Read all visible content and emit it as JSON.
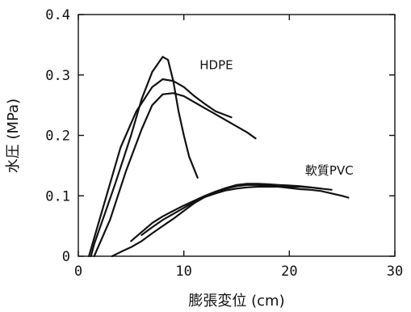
{
  "chart_data": {
    "type": "line",
    "xlabel": "膨張変位 (cm)",
    "ylabel": "水圧 (MPa)",
    "xlim": [
      0,
      30
    ],
    "ylim": [
      0,
      0.4
    ],
    "xticks": [
      0,
      10,
      20,
      30
    ],
    "xtick_labels": [
      "0",
      "10",
      "20",
      "30"
    ],
    "yticks": [
      0,
      0.1,
      0.2,
      0.3,
      0.4
    ],
    "ytick_labels": [
      "0",
      "0.1",
      "0.2",
      "0.3",
      "0.4"
    ],
    "grid": false,
    "line_color": "#111111",
    "annotations": [
      {
        "text": "HDPE",
        "x": 11.5,
        "y": 0.31
      },
      {
        "text": "軟質PVC",
        "x": 21.5,
        "y": 0.135
      }
    ],
    "series": [
      {
        "points": [
          [
            1.2,
            0
          ],
          [
            1.5,
            0.02
          ],
          [
            2.5,
            0.07
          ],
          [
            3.5,
            0.12
          ],
          [
            5,
            0.2
          ],
          [
            6,
            0.26
          ],
          [
            7,
            0.305
          ],
          [
            8,
            0.33
          ],
          [
            8.5,
            0.325
          ],
          [
            9,
            0.29
          ],
          [
            9.5,
            0.24
          ],
          [
            10,
            0.2
          ],
          [
            10.5,
            0.165
          ],
          [
            11.3,
            0.13
          ]
        ]
      },
      {
        "points": [
          [
            1,
            0
          ],
          [
            1.5,
            0.03
          ],
          [
            2.5,
            0.09
          ],
          [
            4,
            0.18
          ],
          [
            5.5,
            0.24
          ],
          [
            7,
            0.28
          ],
          [
            8,
            0.293
          ],
          [
            9,
            0.29
          ],
          [
            10,
            0.28
          ],
          [
            11,
            0.265
          ],
          [
            12,
            0.252
          ],
          [
            13,
            0.24
          ],
          [
            14.5,
            0.23
          ]
        ]
      },
      {
        "points": [
          [
            1.5,
            0
          ],
          [
            2,
            0.02
          ],
          [
            3,
            0.06
          ],
          [
            4.5,
            0.14
          ],
          [
            6,
            0.21
          ],
          [
            7,
            0.25
          ],
          [
            8,
            0.268
          ],
          [
            9,
            0.27
          ],
          [
            10,
            0.265
          ],
          [
            11,
            0.255
          ],
          [
            12,
            0.245
          ],
          [
            13,
            0.235
          ],
          [
            14,
            0.225
          ],
          [
            15,
            0.215
          ],
          [
            16,
            0.205
          ],
          [
            16.8,
            0.195
          ]
        ]
      },
      {
        "points": [
          [
            3.2,
            0
          ],
          [
            4,
            0.007
          ],
          [
            5,
            0.015
          ],
          [
            6,
            0.025
          ],
          [
            7,
            0.038
          ],
          [
            8,
            0.05
          ],
          [
            9,
            0.062
          ],
          [
            10,
            0.075
          ],
          [
            11,
            0.088
          ],
          [
            12,
            0.098
          ],
          [
            13,
            0.106
          ],
          [
            14,
            0.112
          ],
          [
            15,
            0.116
          ],
          [
            16,
            0.118
          ],
          [
            17,
            0.118
          ],
          [
            18,
            0.117
          ],
          [
            19,
            0.115
          ],
          [
            20,
            0.113
          ],
          [
            21,
            0.111
          ],
          [
            22,
            0.11
          ],
          [
            23,
            0.108
          ],
          [
            24,
            0.104
          ],
          [
            25,
            0.1
          ],
          [
            25.6,
            0.097
          ]
        ]
      },
      {
        "points": [
          [
            5,
            0.025
          ],
          [
            6,
            0.04
          ],
          [
            7,
            0.055
          ],
          [
            8,
            0.066
          ],
          [
            9,
            0.075
          ],
          [
            10,
            0.084
          ],
          [
            11,
            0.092
          ],
          [
            12,
            0.1
          ],
          [
            13,
            0.107
          ],
          [
            14,
            0.113
          ],
          [
            15,
            0.118
          ],
          [
            16,
            0.12
          ],
          [
            17,
            0.12
          ],
          [
            18,
            0.119
          ],
          [
            19,
            0.118
          ],
          [
            20,
            0.117
          ],
          [
            21,
            0.116
          ],
          [
            22,
            0.114
          ],
          [
            23,
            0.112
          ],
          [
            24,
            0.11
          ]
        ]
      },
      {
        "points": [
          [
            6,
            0.035
          ],
          [
            7,
            0.048
          ],
          [
            8,
            0.06
          ],
          [
            9,
            0.07
          ],
          [
            10,
            0.08
          ],
          [
            11,
            0.09
          ],
          [
            12,
            0.098
          ],
          [
            13,
            0.104
          ],
          [
            14,
            0.109
          ],
          [
            15,
            0.112
          ],
          [
            16,
            0.114
          ],
          [
            17,
            0.115
          ],
          [
            18,
            0.115
          ],
          [
            19,
            0.115
          ],
          [
            20,
            0.115
          ],
          [
            21,
            0.115
          ],
          [
            22,
            0.114
          ],
          [
            23,
            0.112
          ]
        ]
      }
    ]
  }
}
